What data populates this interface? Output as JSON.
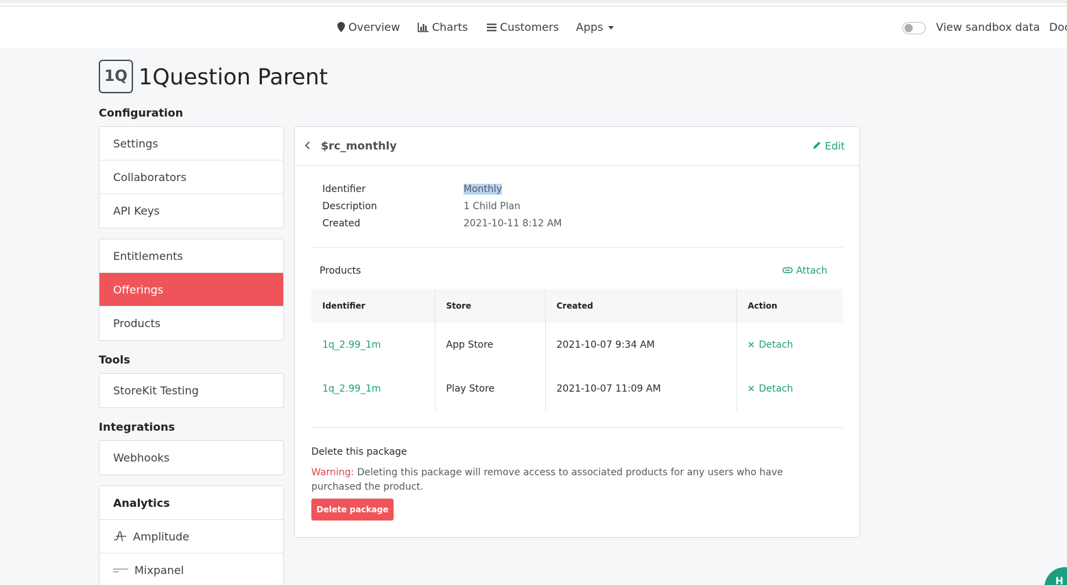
{
  "nav": {
    "items": [
      {
        "label": "Overview",
        "icon": "map-marker-icon"
      },
      {
        "label": "Charts",
        "icon": "bar-chart-icon"
      },
      {
        "label": "Customers",
        "icon": "list-icon"
      },
      {
        "label": "Apps",
        "icon": "caret-down-icon"
      }
    ],
    "sandbox_label": "View sandbox data",
    "docs_label": "Doc"
  },
  "app": {
    "badge": "1Q",
    "title": "1Question Parent"
  },
  "sidebar": {
    "configuration": {
      "heading": "Configuration",
      "group1": [
        "Settings",
        "Collaborators",
        "API Keys"
      ],
      "group2": [
        "Entitlements",
        "Offerings",
        "Products"
      ],
      "active": "Offerings"
    },
    "tools": {
      "heading": "Tools",
      "items": [
        "StoreKit Testing"
      ]
    },
    "integrations": {
      "heading": "Integrations",
      "items": [
        "Webhooks"
      ]
    },
    "analytics": {
      "heading": "Analytics",
      "items": [
        "Amplitude",
        "Mixpanel"
      ]
    }
  },
  "package": {
    "title": "$rc_monthly",
    "edit_label": "Edit",
    "fields": {
      "identifier_label": "Identifier",
      "identifier_value": "Monthly",
      "description_label": "Description",
      "description_value": "1 Child Plan",
      "created_label": "Created",
      "created_value": "2021-10-11 8:12 AM"
    },
    "products_label": "Products",
    "attach_label": "Attach",
    "table": {
      "headers": [
        "Identifier",
        "Store",
        "Created",
        "Action"
      ],
      "rows": [
        {
          "identifier": "1q_2.99_1m",
          "store": "App Store",
          "created": "2021-10-07 9:34 AM",
          "action": "Detach"
        },
        {
          "identifier": "1q_2.99_1m",
          "store": "Play Store",
          "created": "2021-10-07 11:09 AM",
          "action": "Detach"
        }
      ]
    },
    "delete": {
      "title": "Delete this package",
      "warning_prefix": "Warning:",
      "warning_text": " Deleting this package will remove access to associated products for any users who have purchased the product.",
      "button_label": "Delete package"
    }
  },
  "help_bubble": "H",
  "colors": {
    "accent": "#f0545b",
    "link": "#1d9f7f",
    "highlight": "#b9d3f2"
  }
}
